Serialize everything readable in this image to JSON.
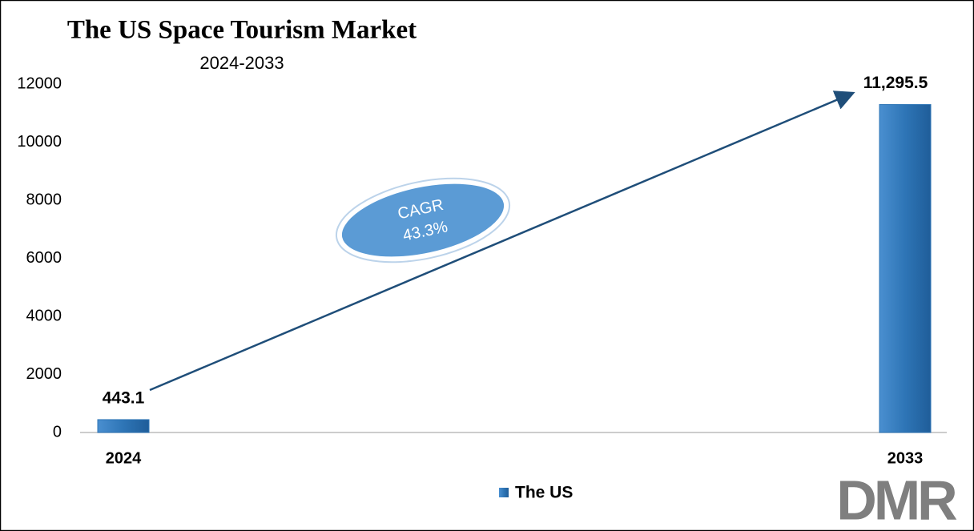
{
  "chart_data": {
    "type": "bar",
    "title": "The US Space Tourism Market",
    "subtitle": "2024-2033",
    "categories": [
      "2024",
      "2033"
    ],
    "series": [
      {
        "name": "The US",
        "color": "#2e75b6",
        "values": [
          443.1,
          11295.5
        ],
        "value_labels": [
          "443.1",
          "11,295.5"
        ]
      }
    ],
    "ylim": [
      0,
      12000
    ],
    "yticks": [
      0,
      2000,
      4000,
      6000,
      8000,
      10000,
      12000
    ],
    "grid": false,
    "legend": "bottom",
    "annotations": [
      "CAGR",
      "43.3%"
    ],
    "logo": "DMR"
  }
}
